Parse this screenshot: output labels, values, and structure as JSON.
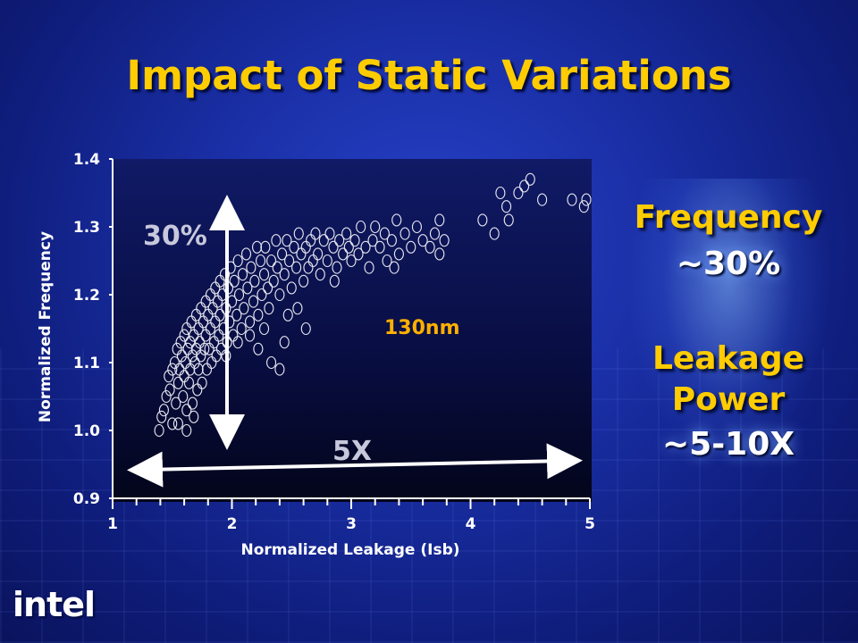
{
  "title": "Impact of Static Variations",
  "side_notes": {
    "frequency_label": "Frequency",
    "frequency_value": "~30%",
    "leakage_label_1": "Leakage",
    "leakage_label_2": "Power",
    "leakage_value": "~5-10X"
  },
  "logo_text": "intel",
  "colors": {
    "title": "#ffcc00",
    "point": "#e6e6f0",
    "annotation_orange": "#ffb000",
    "annotation_grey": "#c8c8dc"
  },
  "chart_data": {
    "type": "scatter",
    "title": "",
    "xlabel": "Normalized Leakage (Isb)",
    "ylabel": "Normalized Frequency",
    "xlim": [
      1,
      5
    ],
    "ylim": [
      0.9,
      1.4
    ],
    "x_ticks": [
      "1",
      "2",
      "3",
      "4",
      "5"
    ],
    "y_ticks": [
      "0.9",
      "1.0",
      "1.1",
      "1.2",
      "1.3",
      "1.4"
    ],
    "annotations": {
      "freq_spread": "30%",
      "leak_spread": "5X",
      "process": "130nm"
    },
    "series": [
      {
        "marker": "open-circle",
        "points": [
          [
            1.39,
            1.0
          ],
          [
            1.41,
            1.02
          ],
          [
            1.43,
            1.03
          ],
          [
            1.45,
            1.05
          ],
          [
            1.47,
            1.08
          ],
          [
            1.48,
            1.06
          ],
          [
            1.5,
            1.09
          ],
          [
            1.5,
            1.01
          ],
          [
            1.52,
            1.1
          ],
          [
            1.53,
            1.04
          ],
          [
            1.54,
            1.12
          ],
          [
            1.55,
            1.07
          ],
          [
            1.56,
            1.09
          ],
          [
            1.57,
            1.13
          ],
          [
            1.58,
            1.11
          ],
          [
            1.59,
            1.05
          ],
          [
            1.6,
            1.14
          ],
          [
            1.6,
            1.08
          ],
          [
            1.61,
            1.1
          ],
          [
            1.62,
            1.03
          ],
          [
            1.62,
            1.15
          ],
          [
            1.63,
            1.12
          ],
          [
            1.64,
            1.07
          ],
          [
            1.65,
            1.13
          ],
          [
            1.65,
            1.09
          ],
          [
            1.66,
            1.16
          ],
          [
            1.67,
            1.11
          ],
          [
            1.67,
            1.04
          ],
          [
            1.68,
            1.14
          ],
          [
            1.69,
            1.1
          ],
          [
            1.7,
            1.17
          ],
          [
            1.7,
            1.12
          ],
          [
            1.71,
            1.06
          ],
          [
            1.72,
            1.15
          ],
          [
            1.72,
            1.09
          ],
          [
            1.73,
            1.13
          ],
          [
            1.74,
            1.18
          ],
          [
            1.74,
            1.11
          ],
          [
            1.75,
            1.07
          ],
          [
            1.76,
            1.16
          ],
          [
            1.77,
            1.12
          ],
          [
            1.78,
            1.19
          ],
          [
            1.78,
            1.14
          ],
          [
            1.79,
            1.09
          ],
          [
            1.8,
            1.17
          ],
          [
            1.81,
            1.12
          ],
          [
            1.82,
            1.2
          ],
          [
            1.82,
            1.15
          ],
          [
            1.83,
            1.1
          ],
          [
            1.84,
            1.18
          ],
          [
            1.85,
            1.13
          ],
          [
            1.86,
            1.21
          ],
          [
            1.86,
            1.16
          ],
          [
            1.87,
            1.11
          ],
          [
            1.88,
            1.19
          ],
          [
            1.89,
            1.14
          ],
          [
            1.9,
            1.22
          ],
          [
            1.9,
            1.17
          ],
          [
            1.91,
            1.12
          ],
          [
            1.92,
            1.2
          ],
          [
            1.93,
            1.15
          ],
          [
            1.94,
            1.23
          ],
          [
            1.95,
            1.18
          ],
          [
            1.96,
            1.13
          ],
          [
            1.97,
            1.21
          ],
          [
            1.98,
            1.16
          ],
          [
            1.99,
            1.24
          ],
          [
            2.0,
            1.19
          ],
          [
            2.01,
            1.14
          ],
          [
            2.02,
            1.22
          ],
          [
            2.04,
            1.17
          ],
          [
            2.05,
            1.25
          ],
          [
            2.06,
            1.2
          ],
          [
            2.08,
            1.15
          ],
          [
            2.09,
            1.23
          ],
          [
            2.1,
            1.18
          ],
          [
            2.12,
            1.26
          ],
          [
            2.13,
            1.21
          ],
          [
            2.15,
            1.16
          ],
          [
            2.16,
            1.24
          ],
          [
            2.18,
            1.19
          ],
          [
            2.19,
            1.22
          ],
          [
            2.21,
            1.27
          ],
          [
            2.22,
            1.17
          ],
          [
            2.24,
            1.25
          ],
          [
            2.25,
            1.2
          ],
          [
            2.27,
            1.23
          ],
          [
            2.28,
            1.27
          ],
          [
            2.3,
            1.21
          ],
          [
            2.31,
            1.18
          ],
          [
            2.33,
            1.25
          ],
          [
            2.35,
            1.22
          ],
          [
            2.37,
            1.28
          ],
          [
            2.38,
            1.24
          ],
          [
            2.4,
            1.2
          ],
          [
            2.42,
            1.26
          ],
          [
            2.44,
            1.23
          ],
          [
            2.46,
            1.28
          ],
          [
            2.48,
            1.25
          ],
          [
            2.5,
            1.21
          ],
          [
            2.52,
            1.27
          ],
          [
            2.54,
            1.24
          ],
          [
            2.56,
            1.29
          ],
          [
            2.58,
            1.26
          ],
          [
            2.6,
            1.22
          ],
          [
            2.62,
            1.27
          ],
          [
            2.64,
            1.24
          ],
          [
            2.66,
            1.28
          ],
          [
            2.68,
            1.25
          ],
          [
            2.7,
            1.29
          ],
          [
            2.72,
            1.26
          ],
          [
            2.74,
            1.23
          ],
          [
            2.77,
            1.28
          ],
          [
            2.8,
            1.25
          ],
          [
            2.82,
            1.29
          ],
          [
            2.85,
            1.27
          ],
          [
            2.88,
            1.24
          ],
          [
            2.9,
            1.28
          ],
          [
            2.93,
            1.26
          ],
          [
            2.96,
            1.29
          ],
          [
            2.98,
            1.27
          ],
          [
            3.0,
            1.25
          ],
          [
            3.03,
            1.28
          ],
          [
            3.06,
            1.26
          ],
          [
            3.08,
            1.3
          ],
          [
            3.12,
            1.27
          ],
          [
            3.15,
            1.24
          ],
          [
            3.18,
            1.28
          ],
          [
            3.2,
            1.3
          ],
          [
            3.24,
            1.27
          ],
          [
            3.28,
            1.29
          ],
          [
            3.3,
            1.25
          ],
          [
            3.34,
            1.28
          ],
          [
            3.38,
            1.31
          ],
          [
            3.4,
            1.26
          ],
          [
            3.45,
            1.29
          ],
          [
            3.5,
            1.27
          ],
          [
            3.55,
            1.3
          ],
          [
            3.6,
            1.28
          ],
          [
            3.66,
            1.27
          ],
          [
            3.7,
            1.29
          ],
          [
            3.74,
            1.31
          ],
          [
            3.78,
            1.28
          ],
          [
            3.74,
            1.26
          ],
          [
            3.36,
            1.24
          ],
          [
            2.86,
            1.22
          ],
          [
            2.55,
            1.18
          ],
          [
            2.62,
            1.15
          ],
          [
            2.47,
            1.17
          ],
          [
            2.33,
            1.1
          ],
          [
            2.44,
            1.13
          ],
          [
            2.22,
            1.12
          ],
          [
            2.15,
            1.14
          ],
          [
            2.4,
            1.09
          ],
          [
            1.62,
            1.0
          ],
          [
            1.68,
            1.02
          ],
          [
            1.55,
            1.01
          ],
          [
            2.05,
            1.13
          ],
          [
            1.95,
            1.11
          ],
          [
            2.27,
            1.15
          ],
          [
            4.1,
            1.31
          ],
          [
            4.2,
            1.29
          ],
          [
            4.3,
            1.33
          ],
          [
            4.32,
            1.31
          ],
          [
            4.4,
            1.35
          ],
          [
            4.45,
            1.36
          ],
          [
            4.6,
            1.34
          ],
          [
            4.85,
            1.34
          ],
          [
            4.95,
            1.33
          ],
          [
            4.97,
            1.34
          ],
          [
            4.25,
            1.35
          ],
          [
            4.5,
            1.37
          ]
        ]
      }
    ]
  }
}
